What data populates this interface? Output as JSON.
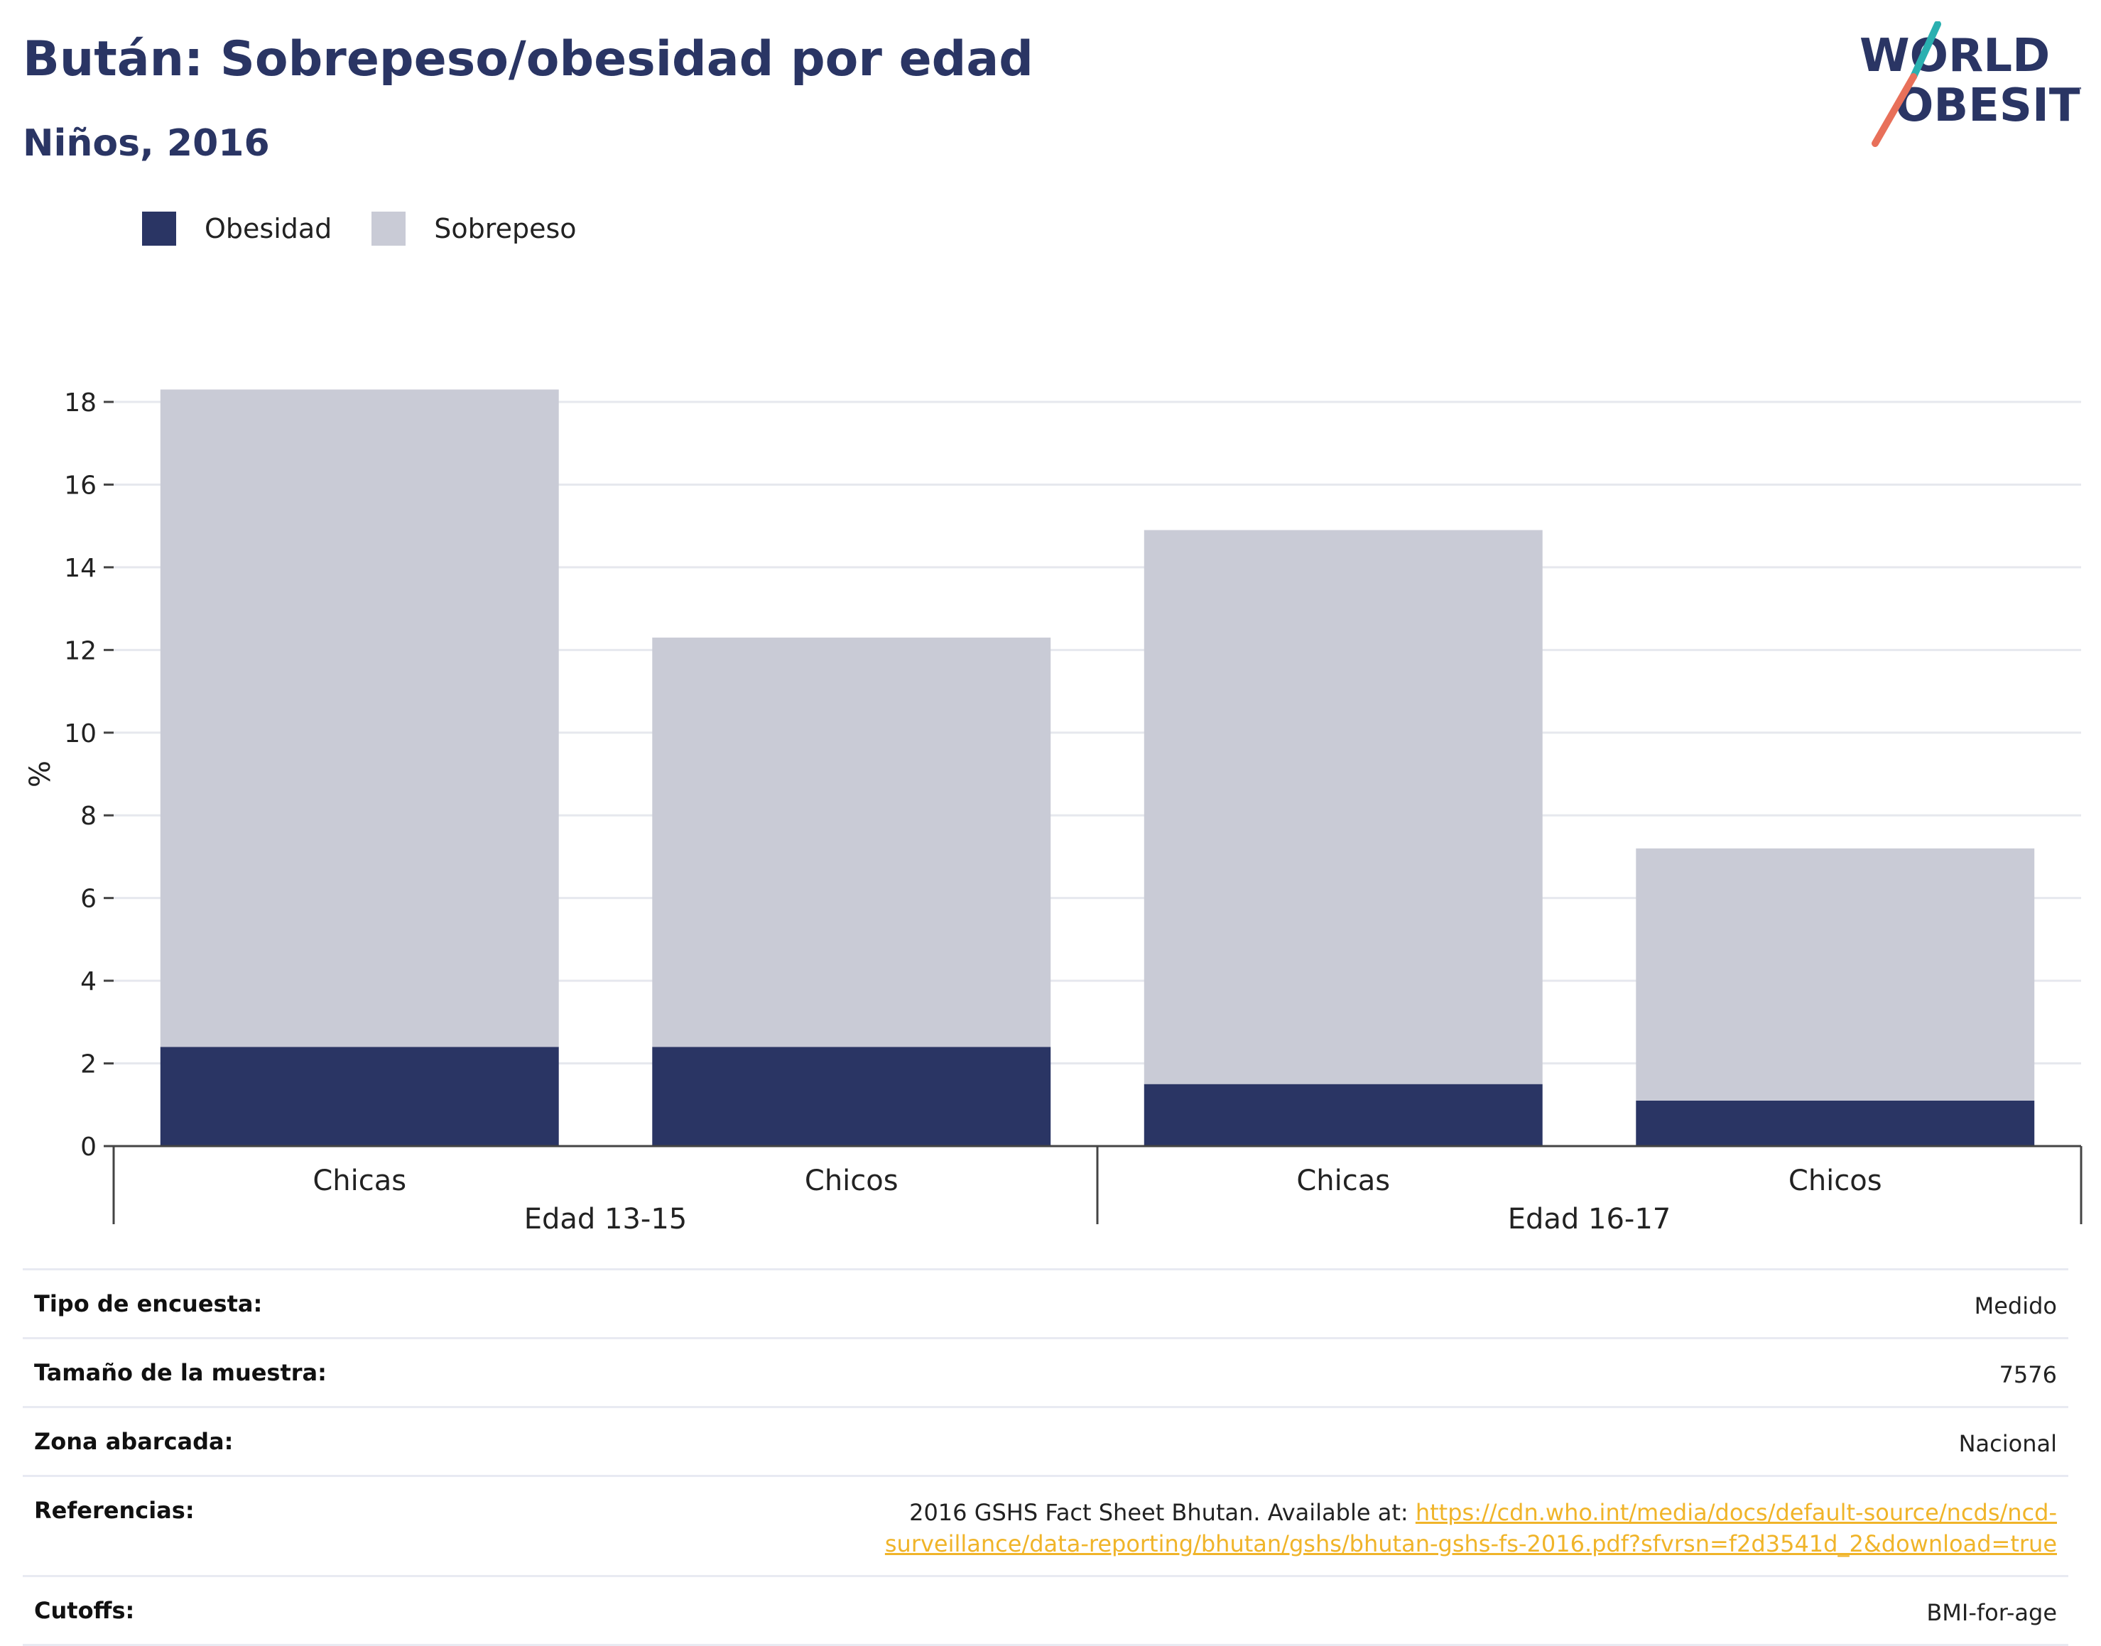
{
  "header": {
    "title": "Bután: Sobrepeso/obesidad por edad",
    "subtitle": "Niños, 2016"
  },
  "logo": {
    "line1": "WORLD",
    "line2": "OBESITY"
  },
  "colors": {
    "obesity": "#2a3564",
    "overweight": "#c9cbd6",
    "accent": "#2a3564",
    "link": "#f0b429",
    "logo_teal": "#2ab0b0",
    "logo_coral": "#e8705a"
  },
  "legend": [
    {
      "label": "Obesidad",
      "color": "#2a3564"
    },
    {
      "label": "Sobrepeso",
      "color": "#c9cbd6"
    }
  ],
  "chart_data": {
    "type": "bar",
    "stacked": true,
    "ylabel": "%",
    "ylim": [
      0,
      18
    ],
    "yticks": [
      0,
      2,
      4,
      6,
      8,
      10,
      12,
      14,
      16,
      18
    ],
    "grid": true,
    "legend_position": "top-left",
    "groups": [
      {
        "label": "Edad 13-15",
        "categories": [
          "Chicas",
          "Chicos"
        ]
      },
      {
        "label": "Edad 16-17",
        "categories": [
          "Chicas",
          "Chicos"
        ]
      }
    ],
    "categories": [
      "Chicas",
      "Chicos",
      "Chicas",
      "Chicos"
    ],
    "series": [
      {
        "name": "Obesidad",
        "values": [
          2.4,
          2.4,
          1.5,
          1.1
        ]
      },
      {
        "name": "Sobrepeso",
        "values": [
          15.9,
          9.9,
          13.4,
          6.1
        ]
      }
    ]
  },
  "info_rows": [
    {
      "key": "Tipo de encuesta:",
      "value": "Medido"
    },
    {
      "key": "Tamaño de la muestra:",
      "value": "7576"
    },
    {
      "key": "Zona abarcada:",
      "value": "Nacional"
    },
    {
      "key": "Referencias:",
      "value": "2016 GSHS Fact Sheet Bhutan. Available at:",
      "link": "https://cdn.who.int/media/docs/default-source/ncds/ncd-surveillance/data-reporting/bhutan/gshs/bhutan-gshs-fs-2016.pdf?sfvrsn=f2d3541d_2&download=true"
    },
    {
      "key": "Cutoffs:",
      "value": "BMI-for-age"
    }
  ]
}
